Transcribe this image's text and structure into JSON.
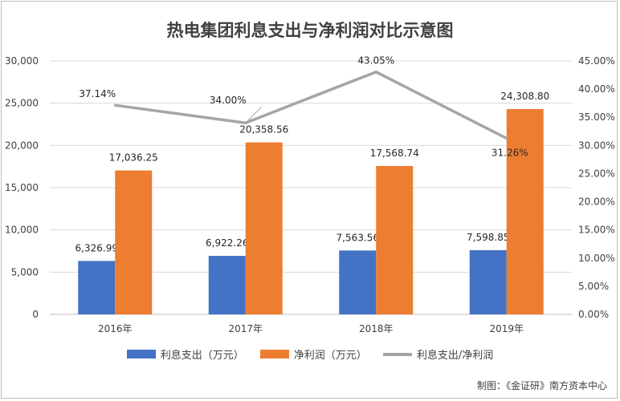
{
  "chart_data": {
    "type": "bar",
    "title": "热电集团利息支出与净利润对比示意图",
    "categories": [
      "2016年",
      "2017年",
      "2018年",
      "2019年"
    ],
    "series": [
      {
        "name": "利息支出（万元）",
        "type": "bar",
        "axis": "left",
        "color": "#4472c4",
        "values": [
          6326.99,
          6922.26,
          7563.56,
          7598.85
        ],
        "labels": [
          "6,326.99",
          "6,922.26",
          "7,563.56",
          "7,598.85"
        ]
      },
      {
        "name": "净利润（万元）",
        "type": "bar",
        "axis": "left",
        "color": "#ed7d31",
        "values": [
          17036.25,
          20358.56,
          17568.74,
          24308.8
        ],
        "labels": [
          "17,036.25",
          "20,358.56",
          "17,568.74",
          "24,308.80"
        ]
      },
      {
        "name": "利息支出/净利润",
        "type": "line",
        "axis": "right",
        "color": "#a5a5a5",
        "values": [
          37.14,
          34.0,
          43.05,
          31.26
        ],
        "labels": [
          "37.14%",
          "34.00%",
          "43.05%",
          "31.26%"
        ]
      }
    ],
    "y_left": {
      "min": 0,
      "max": 30000,
      "ticks": [
        "0",
        "5,000",
        "10,000",
        "15,000",
        "20,000",
        "25,000",
        "30,000"
      ]
    },
    "y_right": {
      "min": 0,
      "max": 45,
      "ticks": [
        "0.00%",
        "5.00%",
        "10.00%",
        "15.00%",
        "20.00%",
        "25.00%",
        "30.00%",
        "35.00%",
        "40.00%",
        "45.00%"
      ]
    },
    "grid": true,
    "legend_position": "bottom"
  },
  "source": "制图：《金证研》南方资本中心"
}
